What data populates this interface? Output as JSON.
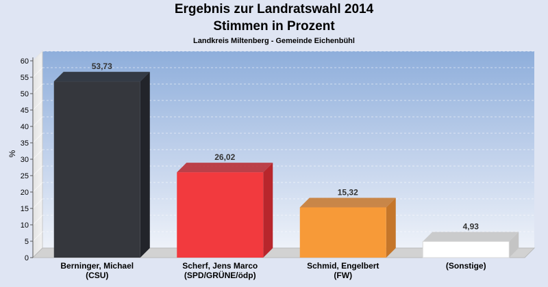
{
  "chart_data": {
    "type": "bar",
    "title": "Ergebnis zur Landratswahl 2014",
    "subtitle": "Stimmen in Prozent",
    "caption": "Landkreis Miltenberg - Gemeinde Eichenbühl",
    "ylabel": "%",
    "xlabel": "",
    "ylim": [
      0,
      60
    ],
    "yticks": [
      "0",
      "5",
      "10",
      "15",
      "20",
      "25",
      "30",
      "35",
      "40",
      "45",
      "50",
      "55",
      "60"
    ],
    "grid": true,
    "categories": [
      [
        "Berninger, Michael",
        "(CSU)"
      ],
      [
        "Scherf, Jens Marco",
        "(SPD/GRÜNE/ödp)"
      ],
      [
        "Schmid, Engelbert",
        "(FW)"
      ],
      [
        "(Sonstige)"
      ]
    ],
    "values": [
      53.73,
      26.02,
      15.32,
      4.93
    ],
    "value_labels": [
      "53,73",
      "26,02",
      "15,32",
      "4,93"
    ],
    "colors": [
      "#35373d",
      "#f23a3e",
      "#f79a38",
      "#ffffff"
    ],
    "side_colors": [
      "#22242a",
      "#b8262c",
      "#c5762a",
      "#c4c4c4"
    ]
  }
}
